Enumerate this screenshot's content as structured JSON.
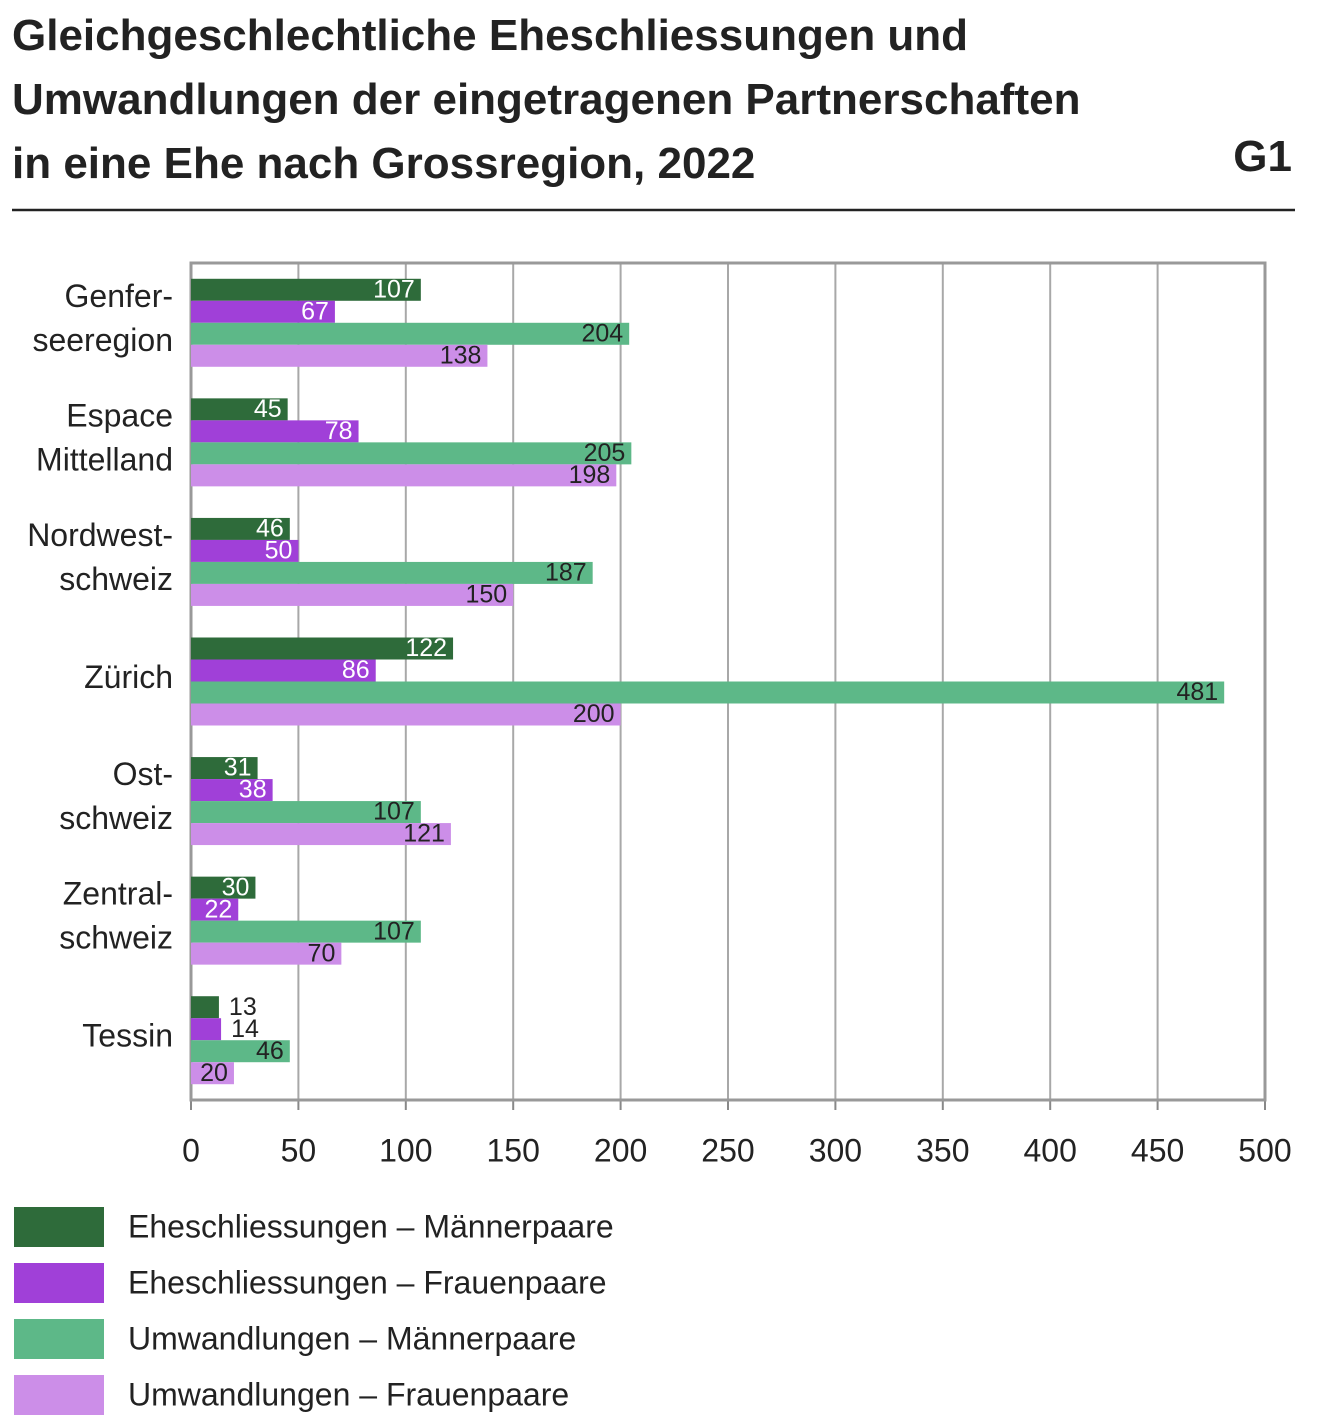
{
  "chart_data": {
    "type": "bar",
    "orientation": "horizontal",
    "title": "Gleichgeschlechtliche Eheschliessungen und\nUmwandlungen der eingetragenen Partnerschaften\nin eine Ehe nach Grossregion, 2022",
    "chart_number": "G1",
    "categories": [
      "Genfer-\nseeregion",
      "Espace\nMittelland",
      "Nordwest-\nschweiz",
      "Zürich",
      "Ost-\nschweiz",
      "Zentral-\nschweiz",
      "Tessin"
    ],
    "series": [
      {
        "name": "Eheschliessungen – Männerpaare",
        "color": "#2e6b3a",
        "values": [
          107,
          45,
          46,
          122,
          31,
          30,
          13
        ]
      },
      {
        "name": "Eheschliessungen – Frauenpaare",
        "color": "#a040d8",
        "values": [
          67,
          78,
          50,
          86,
          38,
          22,
          14
        ]
      },
      {
        "name": "Umwandlungen – Männerpaare",
        "color": "#5db888",
        "values": [
          204,
          205,
          187,
          481,
          107,
          107,
          46
        ]
      },
      {
        "name": "Umwandlungen – Frauenpaare",
        "color": "#cc8ee8",
        "values": [
          138,
          198,
          150,
          200,
          121,
          70,
          20
        ]
      }
    ],
    "xlim": [
      0,
      500
    ],
    "xticks": [
      0,
      50,
      100,
      150,
      200,
      250,
      300,
      350,
      400,
      450,
      500
    ],
    "grid": true
  }
}
